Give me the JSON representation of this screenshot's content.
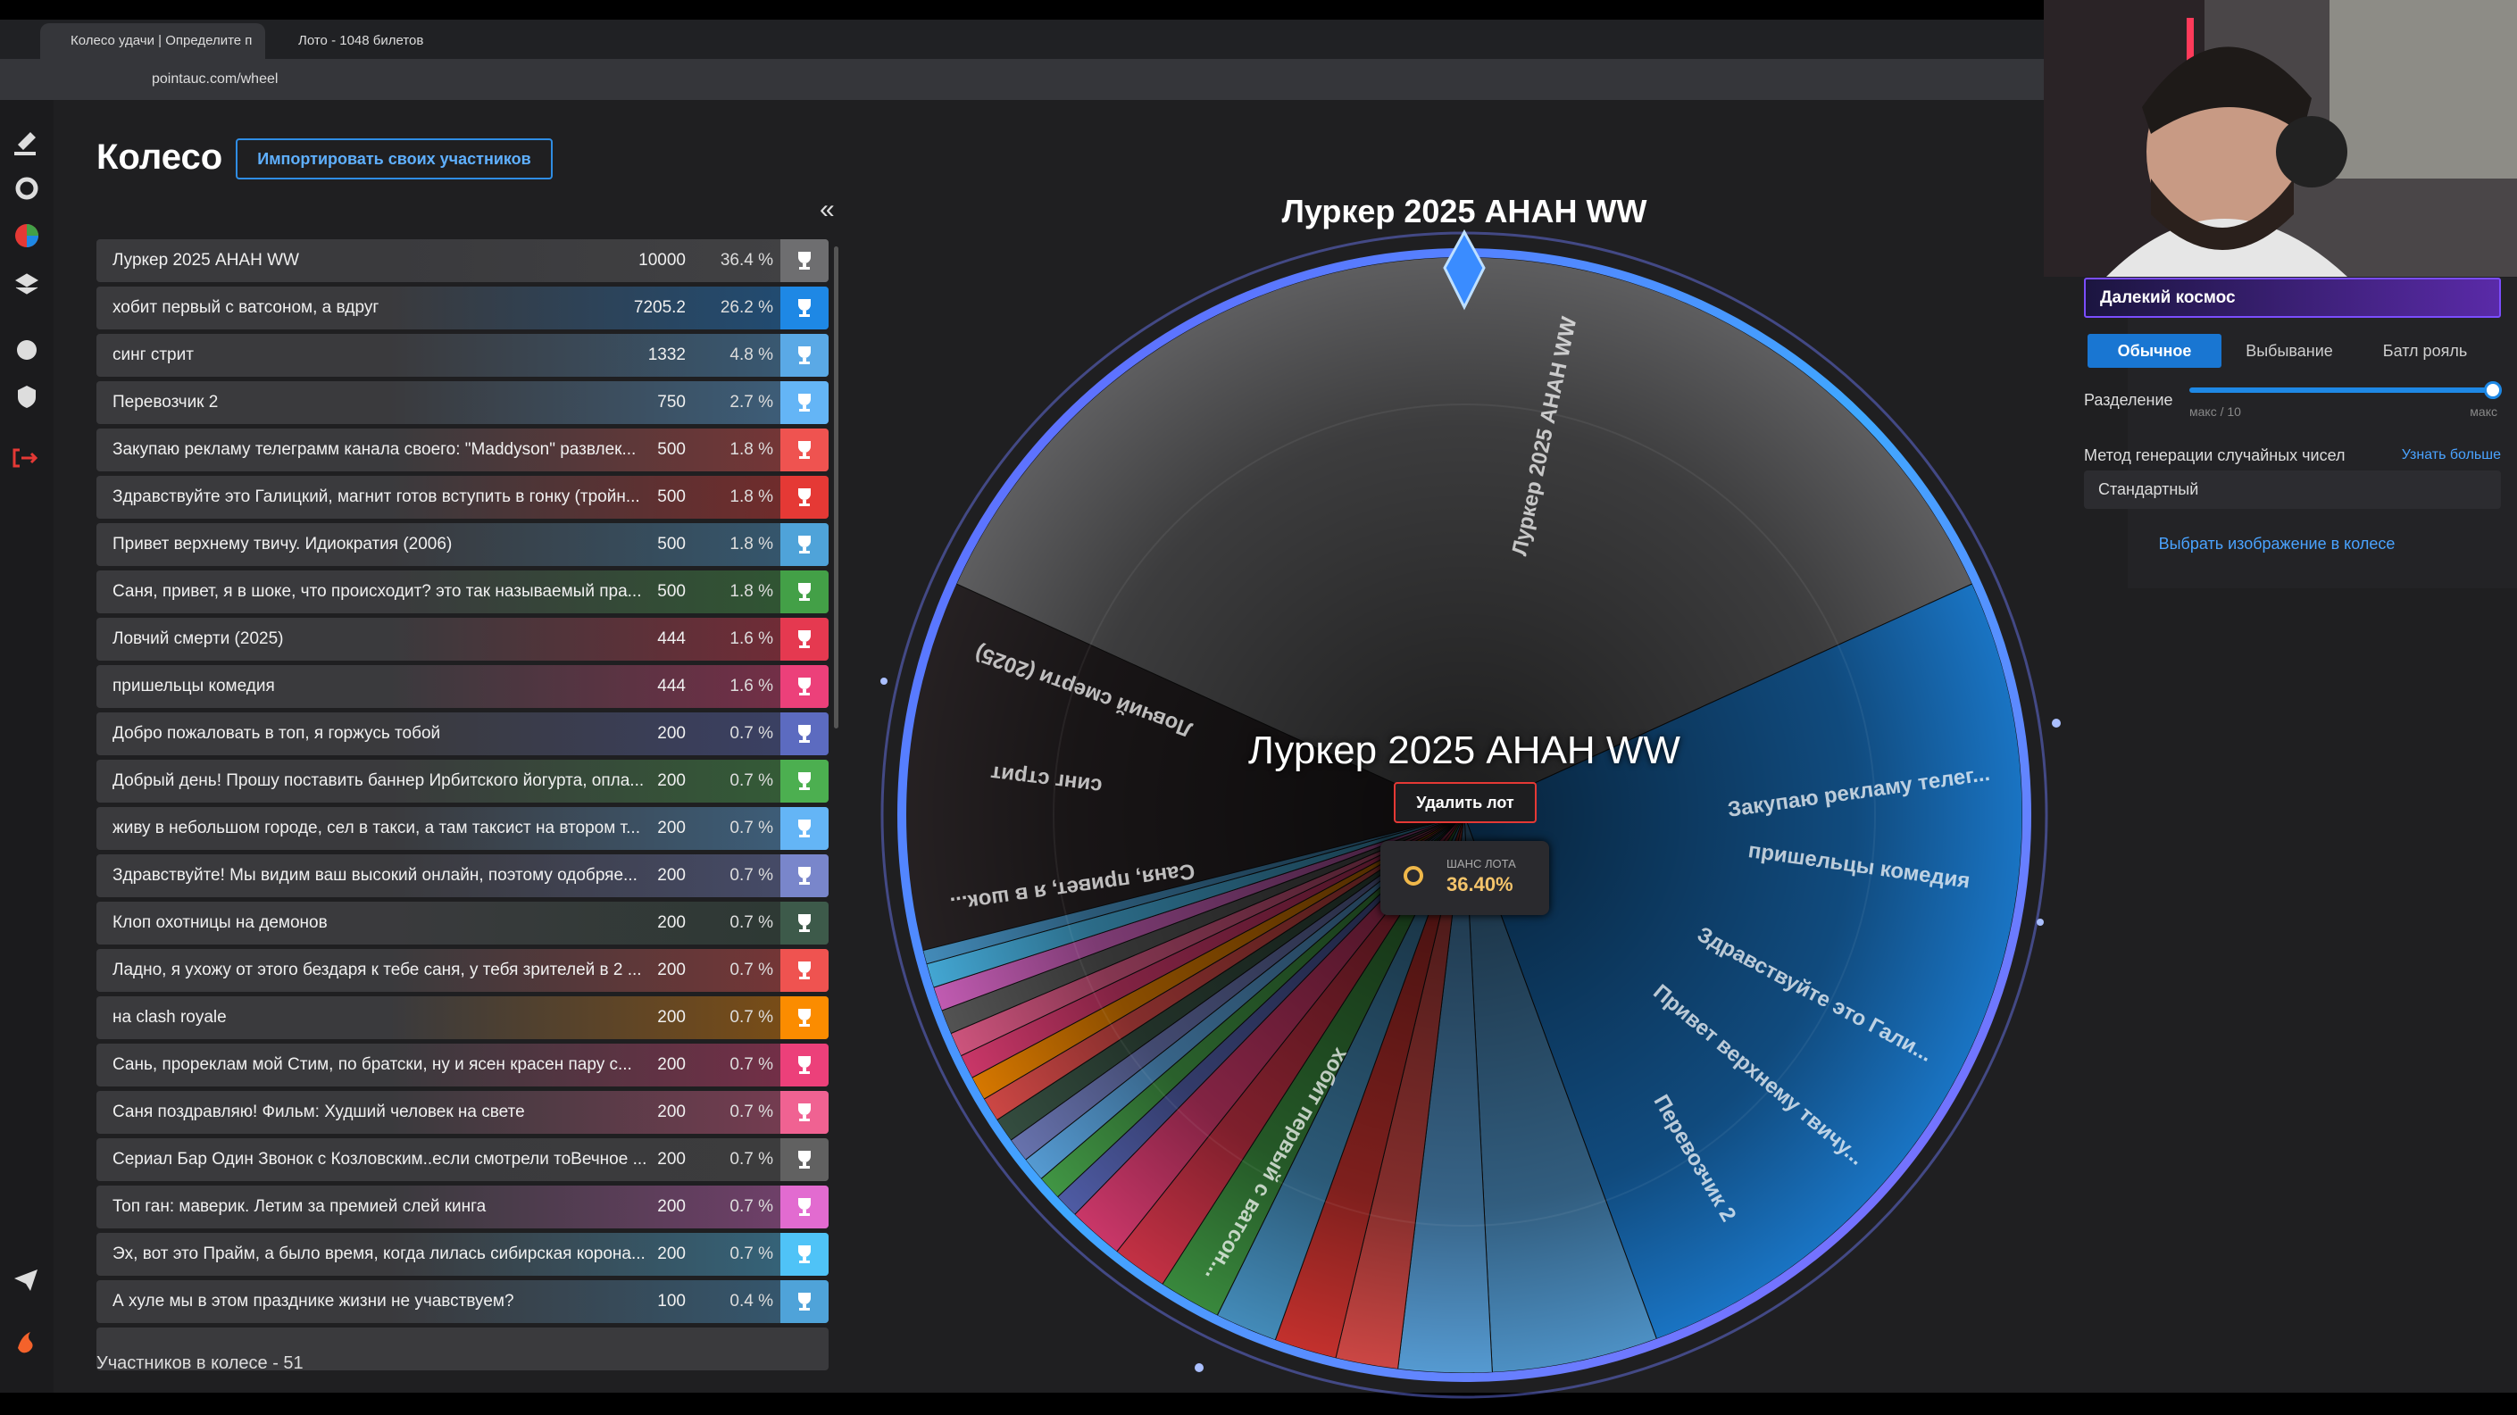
{
  "browser": {
    "tabs": [
      "Колесо удачи | Определите п",
      "Лото - 1048 билетов"
    ],
    "url": "pointauc.com/wheel"
  },
  "header": {
    "title": "Колесо",
    "import_button": "Импортировать своих участников",
    "collapse": "«"
  },
  "participants": [
    {
      "name": "Луркер 2025 АНАН WW",
      "amount": 10000,
      "share": 36.4,
      "share_label": "36.4 %",
      "color": "#6e6e70"
    },
    {
      "name": "хобит первый с ватсоном, а вдруг",
      "amount": 7205.2,
      "share": 26.2,
      "share_label": "26.2 %",
      "color": "#1e88e5"
    },
    {
      "name": "синг стрит",
      "amount": 1332,
      "share": 4.8,
      "share_label": "4.8 %",
      "color": "#5aa9e6"
    },
    {
      "name": "Перевозчик 2",
      "amount": 750,
      "share": 2.7,
      "share_label": "2.7 %",
      "color": "#64b5f6"
    },
    {
      "name": "Закупаю рекламу телеграмм канала своего: \"Maddyson\" развлек...",
      "amount": 500,
      "share": 1.8,
      "share_label": "1.8 %",
      "color": "#ef5350"
    },
    {
      "name": "Здравствуйте это Галицкий, магнит готов вступить в гонку (тройн...",
      "amount": 500,
      "share": 1.8,
      "share_label": "1.8 %",
      "color": "#e53935"
    },
    {
      "name": "Привет верхнему твичу. Идиократия (2006)",
      "amount": 500,
      "share": 1.8,
      "share_label": "1.8 %",
      "color": "#4fa3d9"
    },
    {
      "name": "Саня, привет, я в шоке, что происходит? это так называемый пра...",
      "amount": 500,
      "share": 1.8,
      "share_label": "1.8 %",
      "color": "#43a047"
    },
    {
      "name": "Ловчий смерти (2025)",
      "amount": 444,
      "share": 1.6,
      "share_label": "1.6 %",
      "color": "#e53950"
    },
    {
      "name": "пришельцы комедия",
      "amount": 444,
      "share": 1.6,
      "share_label": "1.6 %",
      "color": "#ec407a"
    },
    {
      "name": "Добро пожаловать в топ, я горжусь тобой",
      "amount": 200,
      "share": 0.7,
      "share_label": "0.7 %",
      "color": "#5c6bc0"
    },
    {
      "name": "Добрый день! Прошу поставить баннер Ирбитского йогурта, опла...",
      "amount": 200,
      "share": 0.7,
      "share_label": "0.7 %",
      "color": "#4caf50"
    },
    {
      "name": "живу в небольшом городе, сел в такси, а там таксист на втором т...",
      "amount": 200,
      "share": 0.7,
      "share_label": "0.7 %",
      "color": "#64b5f6"
    },
    {
      "name": "Здравствуйте! Мы видим ваш высокий онлайн, поэтому одобряе...",
      "amount": 200,
      "share": 0.7,
      "share_label": "0.7 %",
      "color": "#7986cb"
    },
    {
      "name": "Клоп охотницы на демонов",
      "amount": 200,
      "share": 0.7,
      "share_label": "0.7 %",
      "color": "#3d5a4a"
    },
    {
      "name": "Ладно, я ухожу от этого бездаря к тебе саня, у тебя зрителей в 2 ...",
      "amount": 200,
      "share": 0.7,
      "share_label": "0.7 %",
      "color": "#ef5350"
    },
    {
      "name": "на clash royale",
      "amount": 200,
      "share": 0.7,
      "share_label": "0.7 %",
      "color": "#fb8c00"
    },
    {
      "name": "Сань, прореклам мой Стим, по братски, ну и ясен красен пару с...",
      "amount": 200,
      "share": 0.7,
      "share_label": "0.7 %",
      "color": "#ec407a"
    },
    {
      "name": "Саня поздравляю! Фильм: Худший человек на свете",
      "amount": 200,
      "share": 0.7,
      "share_label": "0.7 %",
      "color": "#f06292"
    },
    {
      "name": "Сериал Бар Один Звонок с Козловским..если смотрели тоВечное ...",
      "amount": 200,
      "share": 0.7,
      "share_label": "0.7 %",
      "color": "#616161"
    },
    {
      "name": "Топ ган: маверик. Летим за премией слей кинга",
      "amount": 200,
      "share": 0.7,
      "share_label": "0.7 %",
      "color": "#e26bd0"
    },
    {
      "name": "Эх, вот это Прайм, а было время, когда лилась сибирская корона...",
      "amount": 200,
      "share": 0.7,
      "share_label": "0.7 %",
      "color": "#4fc3f7"
    },
    {
      "name": "А хуле мы в этом празднике жизни не учавствуем?",
      "amount": 100,
      "share": 0.4,
      "share_label": "0.4 %",
      "color": "#4fa3d9"
    }
  ],
  "footer": "Участников в колесе - 51",
  "wheel": {
    "title": "Луркер 2025 АНАН WW",
    "winner": "Луркер 2025 АНАН WW",
    "delete_button": "Удалить лот",
    "chance_label": "ШАНС ЛОТА",
    "chance_value": "36.40%",
    "slice_labels": [
      "Луркер 2025 АНАН WW",
      "Закупаю рекламу телег...",
      "пришельцы комедия",
      "Здравствуйте это Гали...",
      "Привет верхнему твичу...",
      "Перевозчик 2",
      "хобит первый с ватсон...",
      "Саня, привет, я в шок...",
      "синг стрит",
      "Ловчий смерти (2025)"
    ]
  },
  "settings": {
    "theme": "Далекий космос",
    "modes": [
      "Обычное",
      "Выбывание",
      "Батл рояль"
    ],
    "split_label": "Разделение",
    "split_min": "макс / 10",
    "split_max": "макс",
    "rng_label": "Метод генерации случайных чисел",
    "learn_more": "Узнать больше",
    "rng_value": "Стандартный",
    "image_picker": "Выбрать изображение в колесе"
  }
}
